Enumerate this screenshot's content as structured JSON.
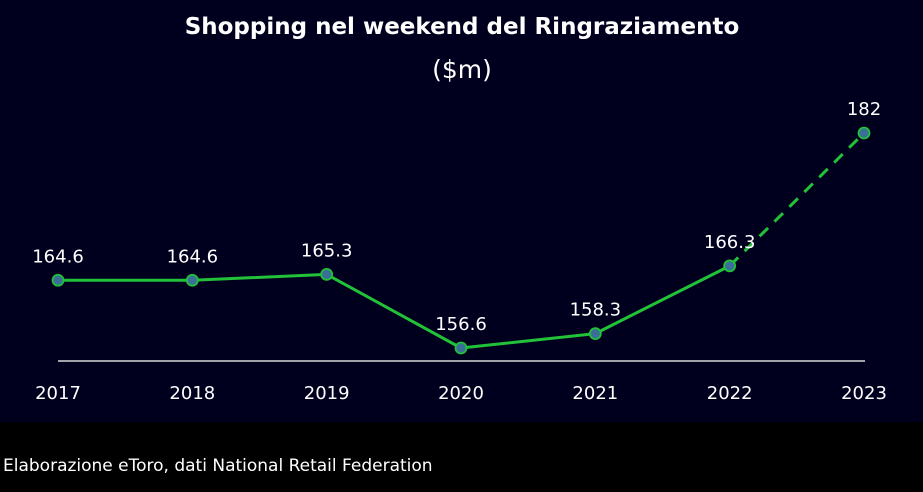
{
  "chart_data": {
    "type": "line",
    "title": "Shopping nel weekend del Ringraziamento",
    "subtitle": "($m)",
    "categories": [
      "2017",
      "2018",
      "2019",
      "2020",
      "2021",
      "2022",
      "2023"
    ],
    "values": [
      164.6,
      164.6,
      165.3,
      156.6,
      158.3,
      166.3,
      182
    ],
    "value_labels": [
      "164.6",
      "164.6",
      "165.3",
      "156.6",
      "158.3",
      "166.3",
      "182"
    ],
    "dashed_from_category": "2022",
    "ylim": [
      150,
      185
    ],
    "grid": false,
    "legend": "none"
  },
  "colors": {
    "background": "#00001e",
    "footer_background": "#000000",
    "line": "#21c138",
    "marker": "#3a6f9a",
    "text": "#ffffff",
    "baseline": "#d8d8d8"
  },
  "footer": {
    "source": "Elaborazione eToro, dati National Retail Federation"
  }
}
